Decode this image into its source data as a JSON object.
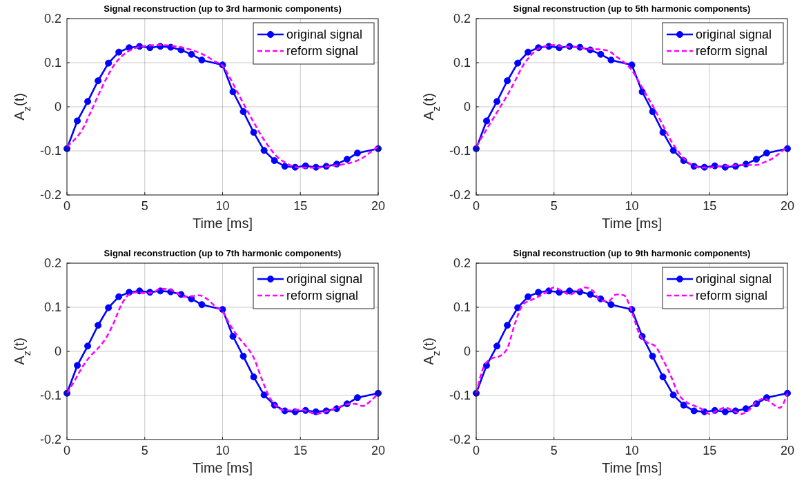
{
  "chart_data": [
    {
      "type": "line",
      "title": "Signal reconstruction (up to 3rd harmonic components)",
      "xlabel": "Time [ms]",
      "ylabel": "A$_{z}$(t)",
      "xlim": [
        0,
        20
      ],
      "xticks": [
        0,
        5,
        10,
        15,
        20
      ],
      "ylim": [
        -0.2,
        0.2
      ],
      "yticks": [
        -0.2,
        -0.1,
        0,
        0.1,
        0.2
      ],
      "grid": true,
      "legend": "top right",
      "series": [
        {
          "name": "original signal",
          "color": "#0000ff",
          "marker": "circle",
          "line_style": "solid",
          "x": [
            0,
            0.667,
            1.333,
            2,
            2.667,
            3.333,
            4,
            4.667,
            5.333,
            6,
            6.667,
            7.333,
            8,
            8.667,
            10,
            10.667,
            11.333,
            12,
            12.667,
            13.333,
            14,
            14.667,
            15.333,
            16,
            16.667,
            17.333,
            18,
            18.667,
            20
          ],
          "values": [
            -0.095,
            -0.032,
            0.012,
            0.059,
            0.099,
            0.124,
            0.134,
            0.137,
            0.134,
            0.137,
            0.135,
            0.129,
            0.119,
            0.106,
            0.095,
            0.034,
            -0.011,
            -0.058,
            -0.099,
            -0.122,
            -0.135,
            -0.137,
            -0.134,
            -0.137,
            -0.135,
            -0.13,
            -0.119,
            -0.105,
            -0.095
          ]
        },
        {
          "name": "reform signal",
          "color": "#ff00ff",
          "marker": "none",
          "line_style": "dashed",
          "x": [
            0,
            0.5,
            1,
            1.5,
            2,
            2.5,
            3,
            3.5,
            4,
            5,
            6,
            7,
            8,
            9,
            9.5,
            10,
            10.5,
            11,
            12,
            12.5,
            13,
            13.5,
            14,
            15,
            16,
            17,
            18,
            19,
            19.5,
            20
          ],
          "values": [
            -0.09,
            -0.074,
            -0.051,
            -0.014,
            0.025,
            0.062,
            0.093,
            0.114,
            0.127,
            0.138,
            0.14,
            0.137,
            0.129,
            0.114,
            0.103,
            0.093,
            0.064,
            0.03,
            -0.035,
            -0.066,
            -0.092,
            -0.113,
            -0.126,
            -0.138,
            -0.138,
            -0.134,
            -0.129,
            -0.116,
            -0.103,
            -0.09
          ]
        }
      ]
    },
    {
      "type": "line",
      "title": "Signal reconstruction (up to 5th harmonic components)",
      "xlabel": "Time [ms]",
      "ylabel": "A$_{z}$(t)",
      "xlim": [
        0,
        20
      ],
      "xticks": [
        0,
        5,
        10,
        15,
        20
      ],
      "ylim": [
        -0.2,
        0.2
      ],
      "yticks": [
        -0.2,
        -0.1,
        0,
        0.1,
        0.2
      ],
      "grid": true,
      "legend": "top right",
      "series": [
        {
          "name": "original signal",
          "color": "#0000ff",
          "marker": "circle",
          "line_style": "solid",
          "x": [
            0,
            0.667,
            1.333,
            2,
            2.667,
            3.333,
            4,
            4.667,
            5.333,
            6,
            6.667,
            7.333,
            8,
            8.667,
            10,
            10.667,
            11.333,
            12,
            12.667,
            13.333,
            14,
            14.667,
            15.333,
            16,
            16.667,
            17.333,
            18,
            18.667,
            20
          ],
          "values": [
            -0.095,
            -0.032,
            0.012,
            0.059,
            0.099,
            0.124,
            0.134,
            0.137,
            0.134,
            0.137,
            0.135,
            0.129,
            0.119,
            0.106,
            0.095,
            0.034,
            -0.011,
            -0.058,
            -0.099,
            -0.122,
            -0.135,
            -0.137,
            -0.134,
            -0.137,
            -0.135,
            -0.13,
            -0.119,
            -0.105,
            -0.095
          ]
        },
        {
          "name": "reform signal",
          "color": "#ff00ff",
          "marker": "none",
          "line_style": "dashed",
          "x": [
            0,
            0.5,
            1,
            1.5,
            2,
            2.5,
            3,
            3.5,
            4,
            4.5,
            5,
            5.5,
            6,
            6.5,
            7,
            7.5,
            8,
            8.5,
            9,
            9.5,
            10,
            10.5,
            11,
            11.5,
            12,
            12.5,
            13,
            13.5,
            14,
            14.5,
            15,
            15.5,
            16,
            16.5,
            17,
            17.5,
            18,
            18.5,
            19,
            19.5,
            20
          ],
          "values": [
            -0.09,
            -0.061,
            -0.032,
            -0.003,
            0.026,
            0.059,
            0.093,
            0.116,
            0.132,
            0.138,
            0.14,
            0.137,
            0.136,
            0.135,
            0.132,
            0.131,
            0.13,
            0.127,
            0.114,
            0.101,
            0.083,
            0.054,
            0.023,
            -0.008,
            -0.042,
            -0.076,
            -0.102,
            -0.123,
            -0.134,
            -0.138,
            -0.138,
            -0.135,
            -0.134,
            -0.133,
            -0.132,
            -0.132,
            -0.132,
            -0.126,
            -0.118,
            -0.105,
            -0.09
          ]
        }
      ]
    },
    {
      "type": "line",
      "title": "Signal reconstruction (up to 7th harmonic components)",
      "xlabel": "Time [ms]",
      "ylabel": "A$_{z}$(t)",
      "xlim": [
        0,
        20
      ],
      "xticks": [
        0,
        5,
        10,
        15,
        20
      ],
      "ylim": [
        -0.2,
        0.2
      ],
      "yticks": [
        -0.2,
        -0.1,
        0,
        0.1,
        0.2
      ],
      "grid": true,
      "legend": "top right",
      "series": [
        {
          "name": "original signal",
          "color": "#0000ff",
          "marker": "circle",
          "line_style": "solid",
          "x": [
            0,
            0.667,
            1.333,
            2,
            2.667,
            3.333,
            4,
            4.667,
            5.333,
            6,
            6.667,
            7.333,
            8,
            8.667,
            10,
            10.667,
            11.333,
            12,
            12.667,
            13.333,
            14,
            14.667,
            15.333,
            16,
            16.667,
            17.333,
            18,
            18.667,
            20
          ],
          "values": [
            -0.095,
            -0.032,
            0.012,
            0.059,
            0.099,
            0.124,
            0.134,
            0.137,
            0.134,
            0.137,
            0.135,
            0.129,
            0.119,
            0.106,
            0.095,
            0.034,
            -0.011,
            -0.058,
            -0.099,
            -0.122,
            -0.135,
            -0.137,
            -0.134,
            -0.137,
            -0.135,
            -0.13,
            -0.119,
            -0.105,
            -0.095
          ]
        },
        {
          "name": "reform signal",
          "color": "#ff00ff",
          "marker": "none",
          "line_style": "dashed",
          "x": [
            0,
            0.5,
            1,
            1.5,
            2,
            2.5,
            3,
            3.5,
            4,
            4.5,
            5,
            5.5,
            6,
            6.5,
            7,
            7.5,
            8,
            8.5,
            9,
            9.5,
            10,
            10.5,
            11,
            11.5,
            12,
            12.5,
            13,
            13.5,
            14,
            14.5,
            15,
            15.5,
            16,
            16.5,
            17,
            17.5,
            18,
            18.5,
            19,
            19.5,
            20
          ],
          "values": [
            -0.095,
            -0.066,
            -0.035,
            -0.011,
            0.007,
            0.03,
            0.064,
            0.106,
            0.129,
            0.134,
            0.132,
            0.133,
            0.142,
            0.141,
            0.134,
            0.124,
            0.125,
            0.127,
            0.119,
            0.103,
            0.09,
            0.059,
            0.033,
            0.012,
            -0.014,
            -0.061,
            -0.103,
            -0.126,
            -0.134,
            -0.134,
            -0.132,
            -0.137,
            -0.142,
            -0.138,
            -0.132,
            -0.126,
            -0.12,
            -0.119,
            -0.124,
            -0.113,
            -0.095
          ]
        }
      ]
    },
    {
      "type": "line",
      "title": "Signal reconstruction (up to 9th harmonic components)",
      "xlabel": "Time [ms]",
      "ylabel": "A$_{z}$(t)",
      "xlim": [
        0,
        20
      ],
      "xticks": [
        0,
        5,
        10,
        15,
        20
      ],
      "ylim": [
        -0.2,
        0.2
      ],
      "yticks": [
        -0.2,
        -0.1,
        0,
        0.1,
        0.2
      ],
      "grid": true,
      "legend": "top right",
      "series": [
        {
          "name": "original signal",
          "color": "#0000ff",
          "marker": "circle",
          "line_style": "solid",
          "x": [
            0,
            0.667,
            1.333,
            2,
            2.667,
            3.333,
            4,
            4.667,
            5.333,
            6,
            6.667,
            7.333,
            8,
            8.667,
            10,
            10.667,
            11.333,
            12,
            12.667,
            13.333,
            14,
            14.667,
            15.333,
            16,
            16.667,
            17.333,
            18,
            18.667,
            20
          ],
          "values": [
            -0.095,
            -0.032,
            0.012,
            0.059,
            0.099,
            0.124,
            0.134,
            0.137,
            0.134,
            0.137,
            0.135,
            0.129,
            0.119,
            0.106,
            0.095,
            0.034,
            -0.011,
            -0.058,
            -0.099,
            -0.122,
            -0.135,
            -0.137,
            -0.134,
            -0.137,
            -0.135,
            -0.13,
            -0.119,
            -0.105,
            -0.095
          ]
        },
        {
          "name": "reform signal",
          "color": "#ff00ff",
          "marker": "none",
          "line_style": "dashed",
          "x": [
            0,
            0.5,
            1,
            1.5,
            2,
            2.5,
            3,
            3.5,
            4,
            4.5,
            5,
            5.5,
            6,
            6.5,
            7,
            7.5,
            8,
            8.5,
            9,
            9.5,
            10,
            10.5,
            11,
            11.5,
            12,
            12.5,
            13,
            13.5,
            14,
            14.5,
            15,
            15.5,
            16,
            16.5,
            17,
            17.5,
            18,
            18.5,
            19,
            19.5,
            20
          ],
          "values": [
            -0.095,
            -0.034,
            -0.016,
            -0.011,
            0.007,
            0.064,
            0.106,
            0.116,
            0.124,
            0.134,
            0.145,
            0.137,
            0.129,
            0.137,
            0.145,
            0.137,
            0.116,
            0.114,
            0.129,
            0.127,
            0.09,
            0.038,
            0.02,
            0.012,
            -0.019,
            -0.055,
            -0.097,
            -0.115,
            -0.123,
            -0.131,
            -0.142,
            -0.134,
            -0.128,
            -0.134,
            -0.142,
            -0.134,
            -0.115,
            -0.107,
            -0.118,
            -0.128,
            -0.095
          ]
        }
      ]
    }
  ]
}
